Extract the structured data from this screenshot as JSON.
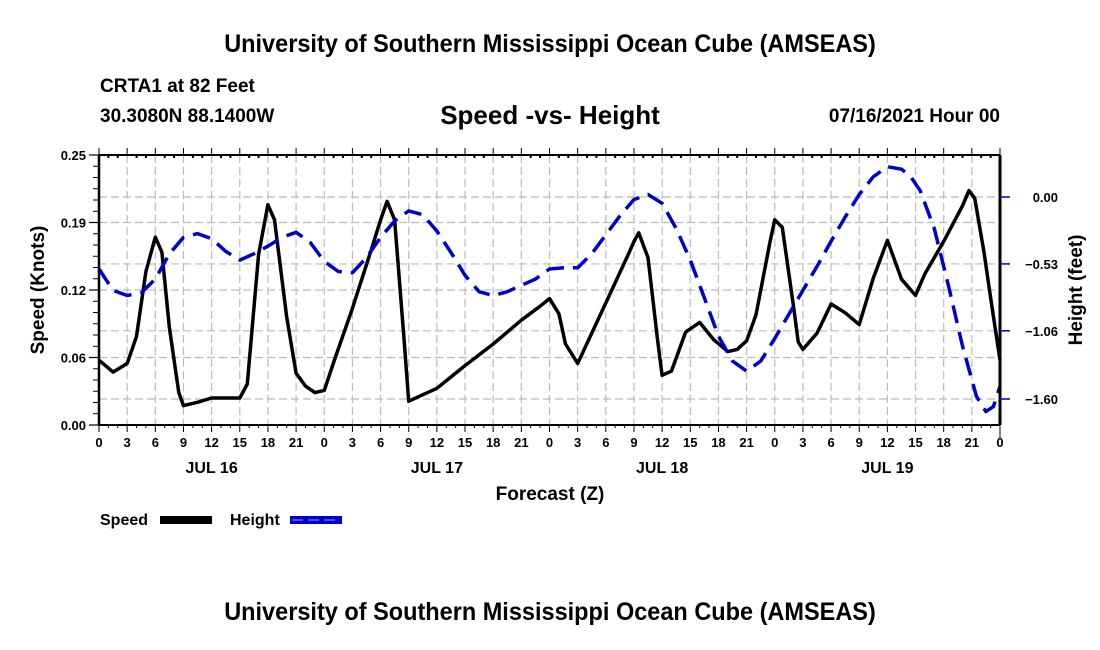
{
  "header": {
    "main_title": "University of Southern Mississippi Ocean Cube (AMSEAS)",
    "station": "CRTA1 at 82 Feet",
    "coords": "30.3080N  88.1400W",
    "subtitle": "Speed -vs- Height",
    "datetime": "07/16/2021 Hour 00"
  },
  "footer": {
    "bottom_title": "University of Southern Mississippi Ocean Cube (AMSEAS)"
  },
  "chart_data": {
    "type": "line",
    "title": "Speed -vs- Height",
    "xlabel": "Forecast (Z)",
    "ylabel": "Speed (Knots)",
    "y2label": "Height (feet)",
    "xlim": [
      0,
      96
    ],
    "ylim": [
      0,
      0.25
    ],
    "y2lim": [
      -1.82,
      0.32
    ],
    "grid": true,
    "x_tick_labels": [
      "0",
      "3",
      "6",
      "9",
      "12",
      "15",
      "18",
      "21",
      "0",
      "3",
      "6",
      "9",
      "12",
      "15",
      "18",
      "21",
      "0",
      "3",
      "6",
      "9",
      "12",
      "15",
      "18",
      "21",
      "0",
      "3",
      "6",
      "9",
      "12",
      "15",
      "18",
      "21",
      "0"
    ],
    "day_labels": [
      {
        "label": "JUL 16",
        "hour": 12
      },
      {
        "label": "JUL 17",
        "hour": 36
      },
      {
        "label": "JUL 18",
        "hour": 60
      },
      {
        "label": "JUL 19",
        "hour": 84
      }
    ],
    "y_ticks": [
      {
        "value": 0.0,
        "label": "0.00"
      },
      {
        "value": 0.0625,
        "label": "0.06"
      },
      {
        "value": 0.125,
        "label": "0.12"
      },
      {
        "value": 0.1875,
        "label": "0.19"
      },
      {
        "value": 0.25,
        "label": "0.25"
      }
    ],
    "y2_ticks": [
      {
        "value": 0.0,
        "label": "0.00"
      },
      {
        "value": -0.53,
        "label": "-0.53"
      },
      {
        "value": -1.06,
        "label": "-1.06"
      },
      {
        "value": -1.6,
        "label": "-1.60"
      }
    ],
    "legend": {
      "position": "bottom-left",
      "entries": [
        "Speed",
        "Height"
      ]
    },
    "series": [
      {
        "name": "Speed",
        "axis": "left",
        "color": "#000000",
        "style": "solid",
        "x": [
          0,
          1.5,
          3,
          4,
          5,
          6,
          6.7,
          7.5,
          8.5,
          9,
          10.5,
          12,
          15,
          15.8,
          17,
          18,
          18.7,
          20,
          21,
          22,
          23,
          24,
          25,
          27,
          29,
          30,
          30.7,
          31.5,
          32.5,
          33,
          36,
          39,
          42,
          45,
          47,
          48,
          49,
          49.7,
          51,
          54,
          56.5,
          57,
          57.5,
          58.5,
          59.5,
          60,
          61,
          62.5,
          64,
          65.5,
          67,
          68,
          69,
          70,
          71.5,
          72,
          72.8,
          74,
          74.5,
          75,
          76.5,
          78,
          79.5,
          81,
          82.5,
          84,
          85.5,
          87,
          88,
          90,
          92,
          92.7,
          93.3,
          94.3,
          95,
          96
        ],
        "values": [
          0.06,
          0.049,
          0.057,
          0.082,
          0.142,
          0.174,
          0.16,
          0.09,
          0.03,
          0.018,
          0.021,
          0.025,
          0.025,
          0.038,
          0.158,
          0.204,
          0.19,
          0.1,
          0.048,
          0.036,
          0.03,
          0.032,
          0.058,
          0.108,
          0.162,
          0.19,
          0.207,
          0.19,
          0.08,
          0.022,
          0.034,
          0.055,
          0.075,
          0.097,
          0.11,
          0.117,
          0.103,
          0.075,
          0.057,
          0.113,
          0.16,
          0.17,
          0.178,
          0.155,
          0.08,
          0.046,
          0.05,
          0.086,
          0.095,
          0.079,
          0.068,
          0.07,
          0.078,
          0.102,
          0.17,
          0.19,
          0.183,
          0.11,
          0.077,
          0.07,
          0.085,
          0.112,
          0.104,
          0.093,
          0.136,
          0.171,
          0.135,
          0.12,
          0.14,
          0.17,
          0.203,
          0.217,
          0.21,
          0.16,
          0.118,
          0.06
        ]
      },
      {
        "name": "Height",
        "axis": "right",
        "color": "#0000cc",
        "style": "dashed",
        "x": [
          0,
          1.5,
          3,
          4.5,
          6,
          7.5,
          9,
          10.5,
          12,
          13.5,
          15,
          16.5,
          18,
          19.5,
          21,
          22.5,
          24,
          25.5,
          27,
          28.5,
          30,
          31.5,
          33,
          34.5,
          36,
          37.5,
          39,
          40.5,
          42,
          43.5,
          45,
          46.5,
          48,
          49.5,
          51,
          52.5,
          54,
          55.5,
          57,
          58.5,
          60,
          61.5,
          63,
          64.5,
          66,
          67.5,
          69,
          70.5,
          72,
          73.5,
          75,
          76.5,
          78,
          79.5,
          81,
          82.5,
          84,
          85.5,
          86.5,
          87.5,
          89,
          90.5,
          92,
          93.5,
          94.5,
          95.3,
          96
        ],
        "values": [
          -0.57,
          -0.74,
          -0.78,
          -0.76,
          -0.65,
          -0.45,
          -0.32,
          -0.29,
          -0.33,
          -0.43,
          -0.5,
          -0.45,
          -0.39,
          -0.32,
          -0.28,
          -0.36,
          -0.51,
          -0.59,
          -0.6,
          -0.48,
          -0.32,
          -0.19,
          -0.11,
          -0.14,
          -0.27,
          -0.44,
          -0.62,
          -0.75,
          -0.78,
          -0.75,
          -0.7,
          -0.65,
          -0.57,
          -0.56,
          -0.56,
          -0.45,
          -0.3,
          -0.15,
          -0.02,
          0.02,
          -0.05,
          -0.25,
          -0.5,
          -0.8,
          -1.1,
          -1.3,
          -1.38,
          -1.3,
          -1.12,
          -0.93,
          -0.74,
          -0.55,
          -0.35,
          -0.16,
          0.02,
          0.16,
          0.24,
          0.22,
          0.16,
          0.05,
          -0.25,
          -0.7,
          -1.18,
          -1.58,
          -1.7,
          -1.66,
          -1.5
        ]
      }
    ]
  }
}
